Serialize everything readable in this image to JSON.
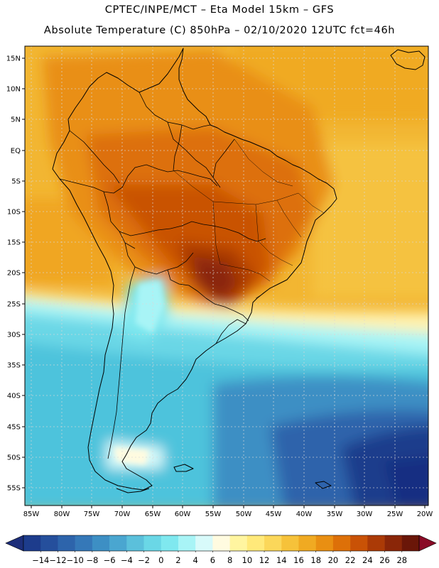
{
  "header": {
    "title_line1": "CPTEC/INPE/MCT –  Eta Model 15km – GFS",
    "title_line2": "Absolute Temperature (C) 850hPa – 02/10/2020 12UTC fct=46h"
  },
  "axes": {
    "lat_labels": [
      "15N",
      "10N",
      "5N",
      "EQ",
      "5S",
      "10S",
      "15S",
      "20S",
      "25S",
      "30S",
      "35S",
      "40S",
      "45S",
      "50S",
      "55S"
    ],
    "lon_labels": [
      "85W",
      "80W",
      "75W",
      "70W",
      "65W",
      "60W",
      "55W",
      "50W",
      "45W",
      "40W",
      "35W",
      "30W",
      "25W",
      "20W"
    ]
  },
  "colorbar": {
    "labels": [
      "-14",
      "-12",
      "-10",
      "-8",
      "-6",
      "-4",
      "-2",
      "0",
      "2",
      "4",
      "6",
      "8",
      "10",
      "12",
      "14",
      "16",
      "18",
      "20",
      "22",
      "24",
      "26",
      "28"
    ],
    "colors": [
      "#1d3c8c",
      "#254f9c",
      "#2d64ab",
      "#3578b8",
      "#3d8fc4",
      "#4aa6d0",
      "#5bc0db",
      "#6ad7e6",
      "#7fe8ef",
      "#a8f4f6",
      "#d8fafa",
      "#fffbe0",
      "#fff5a0",
      "#ffe97a",
      "#fbd75a",
      "#f6c23a",
      "#f0aa22",
      "#e98f12",
      "#dd7008",
      "#c95206",
      "#ab3a06",
      "#8a2608",
      "#6a1608"
    ],
    "under_color": "#1d2e7a",
    "over_color": "#8a0a26"
  }
}
